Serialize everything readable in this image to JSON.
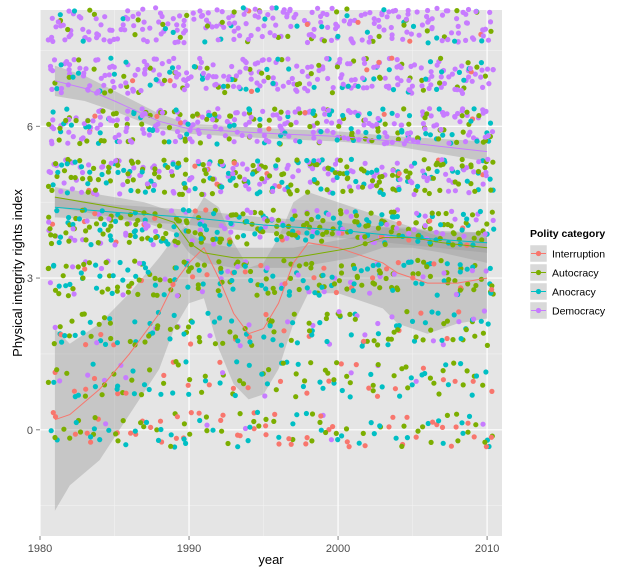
{
  "chart_data": {
    "type": "scatter",
    "xlabel": "year",
    "ylabel": "Physical integrity rights index",
    "xlim": [
      1980,
      2011
    ],
    "ylim": [
      -2.1,
      8.3
    ],
    "x_ticks": [
      1980,
      1990,
      2000,
      2010
    ],
    "y_ticks": [
      0,
      3,
      6
    ],
    "grid": true,
    "jitter": {
      "x": 0.45,
      "y": 0.35
    },
    "levels": [
      0,
      1,
      2,
      3,
      4,
      5,
      6,
      7,
      8
    ],
    "legend": {
      "title": "Polity category",
      "position": "right",
      "entries": [
        "Interruption",
        "Autocracy",
        "Anocracy",
        "Democracy"
      ]
    },
    "colors": {
      "Interruption": "#f8766d",
      "Autocracy": "#7cae00",
      "Anocracy": "#00bfc4",
      "Democracy": "#c77cff",
      "panel": "#e5e5e5",
      "grid_major": "#ffffff",
      "band": "#999999"
    },
    "series": [
      {
        "name": "Interruption",
        "level_weights": [
          0.3,
          0.15,
          0.1,
          0.12,
          0.12,
          0.08,
          0.06,
          0.04,
          0.03
        ],
        "points_per_year": 1,
        "smooth": {
          "x": [
            1981,
            1982,
            1984,
            1986,
            1988,
            1989,
            1990,
            1991,
            1992,
            1993,
            1994,
            1995,
            1996,
            1997,
            1998,
            2000,
            2002,
            2003,
            2004,
            2006,
            2008,
            2010
          ],
          "y": [
            0.2,
            0.3,
            0.8,
            1.5,
            2.3,
            2.9,
            3.3,
            3.6,
            3.0,
            2.3,
            1.9,
            2.0,
            2.5,
            3.3,
            3.7,
            3.6,
            3.4,
            3.3,
            3.1,
            2.9,
            2.9,
            3.0
          ],
          "lower": [
            -1.6,
            -1.1,
            -0.6,
            0.3,
            1.2,
            2.0,
            2.5,
            2.6,
            1.6,
            0.9,
            0.6,
            0.7,
            1.2,
            2.1,
            2.7,
            2.7,
            2.5,
            2.4,
            2.1,
            1.9,
            2.1,
            2.2
          ],
          "upper": [
            2.0,
            1.7,
            2.1,
            2.7,
            3.4,
            3.8,
            4.1,
            4.6,
            4.4,
            3.7,
            3.2,
            3.3,
            3.8,
            4.5,
            4.7,
            4.5,
            4.3,
            4.2,
            4.1,
            3.9,
            3.7,
            3.8
          ]
        }
      },
      {
        "name": "Autocracy",
        "level_weights": [
          0.07,
          0.06,
          0.09,
          0.16,
          0.2,
          0.2,
          0.12,
          0.06,
          0.04
        ],
        "points_per_year": 4,
        "smooth": {
          "x": [
            1981,
            1983,
            1985,
            1987,
            1989,
            1990,
            1991,
            1993,
            1995,
            1997,
            1999,
            2001,
            2003,
            2005,
            2007,
            2010
          ],
          "y": [
            4.6,
            4.5,
            4.4,
            4.3,
            4.1,
            3.7,
            3.5,
            3.4,
            3.4,
            3.4,
            3.5,
            3.6,
            3.8,
            3.8,
            3.7,
            3.6
          ],
          "lower": [
            4.4,
            4.3,
            4.2,
            4.1,
            3.9,
            3.5,
            3.3,
            3.2,
            3.2,
            3.2,
            3.3,
            3.4,
            3.6,
            3.6,
            3.5,
            3.3
          ],
          "upper": [
            4.8,
            4.7,
            4.6,
            4.5,
            4.3,
            3.9,
            3.7,
            3.6,
            3.6,
            3.6,
            3.7,
            3.8,
            4.0,
            4.0,
            3.9,
            3.9
          ]
        }
      },
      {
        "name": "Anocracy",
        "level_weights": [
          0.08,
          0.08,
          0.11,
          0.15,
          0.17,
          0.16,
          0.13,
          0.08,
          0.04
        ],
        "points_per_year": 3,
        "smooth": {
          "x": [
            1981,
            1985,
            1990,
            1995,
            2000,
            2005,
            2010
          ],
          "y": [
            4.4,
            4.3,
            4.2,
            4.05,
            3.95,
            3.8,
            3.7
          ],
          "lower": [
            4.2,
            4.15,
            4.05,
            3.9,
            3.8,
            3.65,
            3.5
          ],
          "upper": [
            4.6,
            4.45,
            4.35,
            4.2,
            4.1,
            3.95,
            3.9
          ]
        }
      },
      {
        "name": "Democracy",
        "level_weights": [
          0.01,
          0.01,
          0.02,
          0.04,
          0.08,
          0.14,
          0.22,
          0.24,
          0.24
        ],
        "points_per_year": 5,
        "smooth": {
          "x": [
            1981,
            1983,
            1985,
            1988,
            1990,
            1993,
            1996,
            2000,
            2004,
            2007,
            2010
          ],
          "y": [
            6.9,
            6.75,
            6.5,
            6.1,
            5.95,
            5.9,
            5.85,
            5.8,
            5.7,
            5.6,
            5.5
          ],
          "lower": [
            6.6,
            6.5,
            6.3,
            5.95,
            5.85,
            5.8,
            5.75,
            5.7,
            5.6,
            5.45,
            5.3
          ],
          "upper": [
            7.2,
            7.0,
            6.7,
            6.25,
            6.05,
            6.0,
            5.95,
            5.9,
            5.8,
            5.75,
            5.7
          ]
        }
      }
    ]
  }
}
